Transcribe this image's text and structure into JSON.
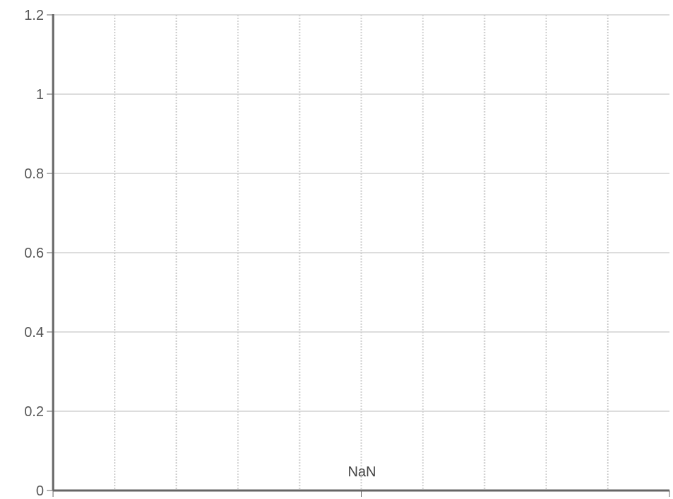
{
  "chart_data": {
    "type": "line",
    "title": "",
    "xlabel": "",
    "ylabel": "",
    "ylim": [
      0,
      1.2
    ],
    "y_ticks": [
      "0",
      "0.2",
      "0.4",
      "0.6",
      "0.8",
      "1",
      "1.2"
    ],
    "x_tick_labels": [
      "NaN"
    ],
    "x_grid_divisions": 10,
    "series": [],
    "grid": true,
    "legend": "none",
    "colors": {
      "axis": "#666666",
      "grid_horizontal": "#dddddd",
      "grid_vertical": "#d0d0d0",
      "tick_text": "#555555",
      "x_text": "#444444"
    }
  }
}
